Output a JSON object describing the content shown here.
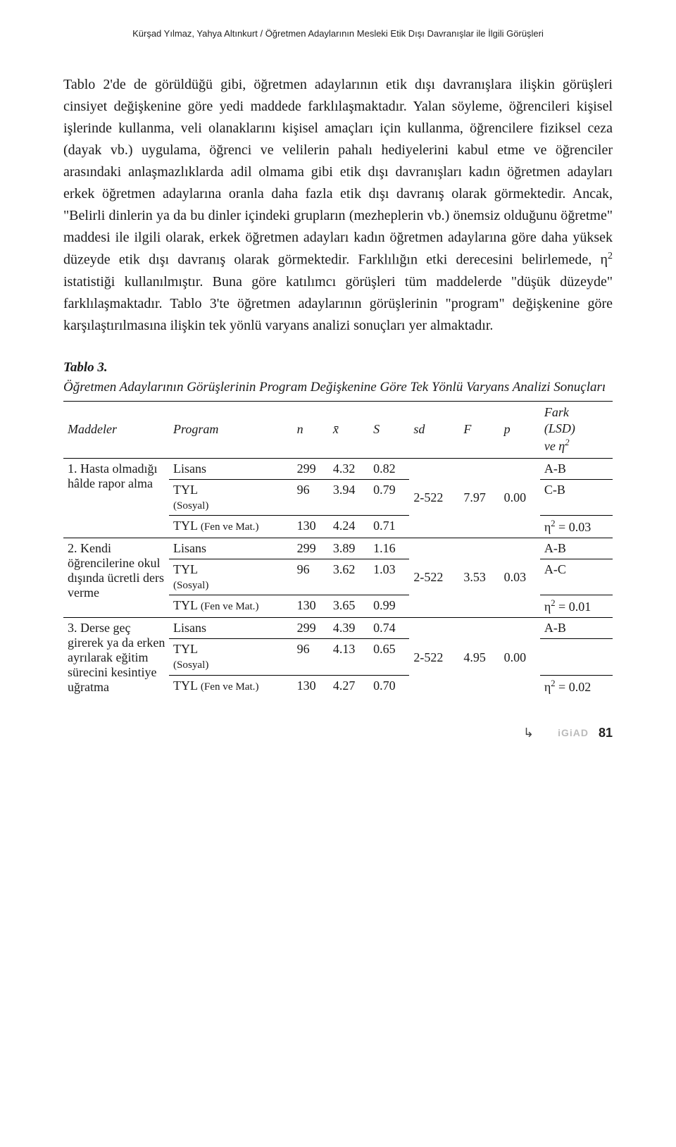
{
  "running_head": "Kürşad Yılmaz, Yahya Altınkurt / Öğretmen Adaylarının Mesleki Etik Dışı Davranışlar ile İlgili Görüşleri",
  "body": {
    "p1a": "Tablo 2'de de görüldüğü gibi, öğretmen adaylarının etik dışı davranışlara ilişkin görüşleri cinsiyet değişkenine göre yedi maddede farklılaşmaktadır. Yalan söyleme, öğrencileri kişisel işlerinde kullanma, veli olanaklarını kişisel amaçları için kullanma, öğrencilere fiziksel ceza (dayak vb.) uygulama, öğrenci ve velilerin pahalı hediyelerini kabul etme ve öğrenciler arasındaki anlaşmazlıklarda adil olmama gibi etik dışı davranışları kadın öğretmen adayları erkek öğretmen adaylarına oranla daha fazla etik dışı davranış olarak görmektedir. Ancak, \"Belirli dinlerin ya da bu dinler içindeki grupların (mezheplerin vb.) önemsiz olduğunu öğretme\" maddesi ile ilgili olarak, erkek öğretmen adayları kadın öğretmen adaylarına göre daha yüksek düzeyde etik dışı davranış olarak görmektedir. Farklılığın etki derecesini belirlemede, η",
    "p1b": " istatistiği kullanılmıştır. Buna göre katılımcı görüşleri tüm maddelerde \"düşük düzeyde\" farklılaşmaktadır. Tablo 3'te öğretmen adaylarının görüşlerinin \"program\" değişkenine göre karşılaştırılmasına ilişkin tek yönlü varyans analizi sonuçları yer almaktadır."
  },
  "table": {
    "label": "Tablo 3.",
    "caption": "Öğretmen Adaylarının Görüşlerinin Program Değişkenine Göre Tek Yönlü Varyans Analizi Sonuçları",
    "headers": {
      "item": "Maddeler",
      "program": "Program",
      "n": "n",
      "mean": "x̄",
      "s": "S",
      "sd": "sd",
      "f": "F",
      "p": "p",
      "fark_a": "Fark",
      "fark_b": "(LSD)",
      "fark_c": "ve  η"
    },
    "programs": {
      "lisans": "Lisans",
      "tyl_s_a": "TYL",
      "tyl_s_b": "(Sosyal)",
      "tyl_f_a": "TYL ",
      "tyl_f_b": "(Fen ve Mat.)"
    },
    "rows": [
      {
        "item": "1. Hasta olmadığı hâlde rapor alma",
        "lisans": {
          "n": "299",
          "mean": "4.32",
          "s": "0.82",
          "fark": "A-B"
        },
        "tyl_s": {
          "n": "96",
          "mean": "3.94",
          "s": "0.79",
          "fark": "C-B"
        },
        "tyl_f": {
          "n": "130",
          "mean": "4.24",
          "s": "0.71",
          "fark_a": "η",
          "fark_b": " = 0.03"
        },
        "sd": "2-522",
        "f": "7.97",
        "p": "0.00"
      },
      {
        "item": "2. Kendi öğrencilerine okul dışında ücretli ders verme",
        "lisans": {
          "n": "299",
          "mean": "3.89",
          "s": "1.16",
          "fark": "A-B"
        },
        "tyl_s": {
          "n": "96",
          "mean": "3.62",
          "s": "1.03",
          "fark": "A-C"
        },
        "tyl_f": {
          "n": "130",
          "mean": "3.65",
          "s": "0.99",
          "fark_a": "η",
          "fark_b": " = 0.01"
        },
        "sd": "2-522",
        "f": "3.53",
        "p": "0.03"
      },
      {
        "item": "3. Derse geç girerek ya da erken ayrılarak eğitim sürecini kesintiye uğratma",
        "lisans": {
          "n": "299",
          "mean": "4.39",
          "s": "0.74",
          "fark": "A-B"
        },
        "tyl_s": {
          "n": "96",
          "mean": "4.13",
          "s": "0.65",
          "fark": ""
        },
        "tyl_f": {
          "n": "130",
          "mean": "4.27",
          "s": "0.70",
          "fark_a": "η",
          "fark_b": " = 0.02"
        },
        "sd": "2-522",
        "f": "4.95",
        "p": "0.00"
      }
    ]
  },
  "footer": {
    "logo": "iGiAD",
    "page": "81"
  }
}
